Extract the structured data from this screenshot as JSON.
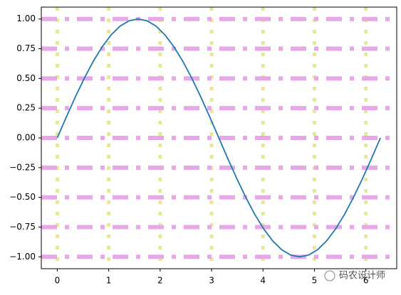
{
  "chart_data": {
    "type": "line",
    "x": [
      0,
      0.175,
      0.349,
      0.524,
      0.698,
      0.873,
      1.047,
      1.222,
      1.396,
      1.571,
      1.745,
      1.92,
      2.094,
      2.269,
      2.443,
      2.618,
      2.793,
      2.967,
      3.142,
      3.316,
      3.491,
      3.665,
      3.84,
      4.014,
      4.189,
      4.363,
      4.538,
      4.712,
      4.887,
      5.061,
      5.236,
      5.411,
      5.585,
      5.76,
      5.934,
      6.109,
      6.283
    ],
    "series": [
      {
        "color": "#1f77b4",
        "values": [
          0,
          0.174,
          0.342,
          0.5,
          0.643,
          0.766,
          0.866,
          0.94,
          0.985,
          1,
          0.985,
          0.94,
          0.866,
          0.766,
          0.643,
          0.5,
          0.342,
          0.174,
          0,
          -0.174,
          -0.342,
          -0.5,
          -0.643,
          -0.766,
          -0.866,
          -0.94,
          -0.985,
          -1,
          -0.985,
          -0.94,
          -0.866,
          -0.766,
          -0.643,
          -0.5,
          -0.342,
          -0.174,
          0
        ]
      }
    ],
    "xlim": [
      -0.31,
      6.6
    ],
    "ylim": [
      -1.1,
      1.1
    ],
    "xticks": [
      0,
      1,
      2,
      3,
      4,
      5,
      6
    ],
    "yticks": [
      {
        "value": 1,
        "label": "1.00"
      },
      {
        "value": 0.75,
        "label": "0.75"
      },
      {
        "value": 0.5,
        "label": "0.50"
      },
      {
        "value": 0.25,
        "label": "0.25"
      },
      {
        "value": 0,
        "label": "0.00"
      },
      {
        "value": -0.25,
        "label": "−0.25"
      },
      {
        "value": -0.5,
        "label": "−0.50"
      },
      {
        "value": -0.75,
        "label": "−0.75"
      },
      {
        "value": -1,
        "label": "−1.00"
      }
    ],
    "grid": true,
    "x_grid_color": "#e6e6a0",
    "y_grid_color": "#e6a8e6",
    "watermark": "码农设计师"
  }
}
